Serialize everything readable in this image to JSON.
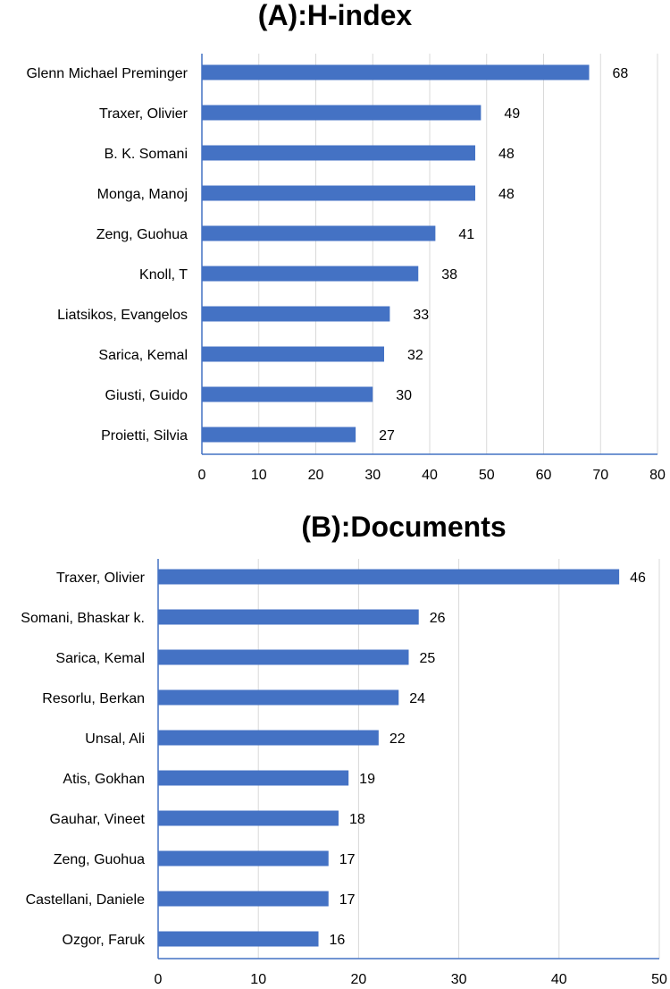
{
  "chart_data": [
    {
      "type": "bar",
      "orientation": "horizontal",
      "title": "(A):H-index",
      "categories": [
        "Glenn Michael Preminger",
        "Traxer, Olivier",
        "B. K. Somani",
        "Monga, Manoj",
        "Zeng, Guohua",
        "Knoll, T",
        "Liatsikos, Evangelos",
        "Sarica, Kemal",
        "Giusti, Guido",
        "Proietti, Silvia"
      ],
      "values": [
        68,
        49,
        48,
        48,
        41,
        38,
        33,
        32,
        30,
        27
      ],
      "xlim": [
        0,
        80
      ],
      "xticks": [
        0,
        10,
        20,
        30,
        40,
        50,
        60,
        70,
        80
      ],
      "grid": true,
      "bar_color": "#4472c4"
    },
    {
      "type": "bar",
      "orientation": "horizontal",
      "title": "(B):Documents",
      "categories": [
        "Traxer, Olivier",
        "Somani, Bhaskar k.",
        "Sarica, Kemal",
        "Resorlu, Berkan",
        "Unsal, Ali",
        "Atis, Gokhan",
        "Gauhar, Vineet",
        "Zeng, Guohua",
        "Castellani, Daniele",
        "Ozgor, Faruk"
      ],
      "values": [
        46,
        26,
        25,
        24,
        22,
        19,
        18,
        17,
        17,
        16
      ],
      "xlim": [
        0,
        50
      ],
      "xticks": [
        0,
        10,
        20,
        30,
        40,
        50
      ],
      "grid": true,
      "bar_color": "#4472c4"
    }
  ]
}
